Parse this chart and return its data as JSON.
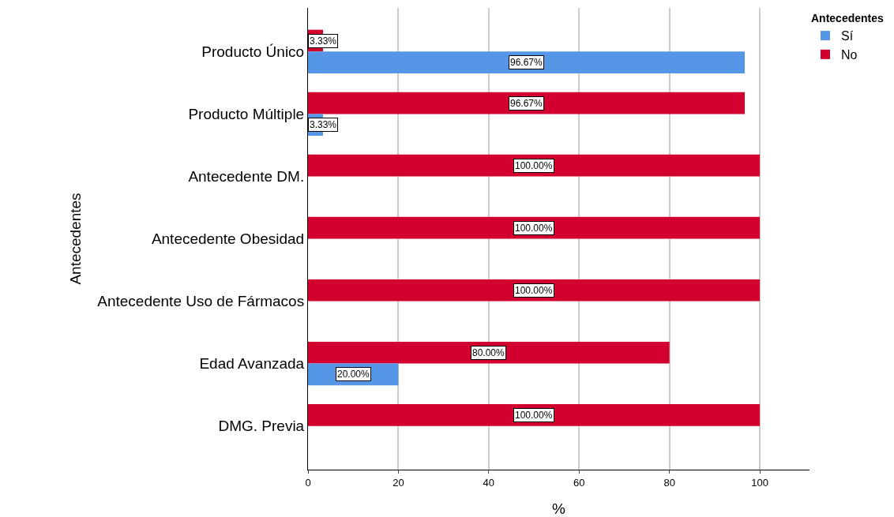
{
  "chart_data": {
    "type": "bar",
    "orientation": "horizontal",
    "xlabel": "%",
    "ylabel": "Antecedentes",
    "legend_title": "Antecedentes",
    "categories": [
      "Producto Único",
      "Producto Múltiple",
      "Antecedente DM.",
      "Antecedente Obesidad",
      "Antecedente Uso de Fármacos",
      "Edad Avanzada",
      "DMG. Previa"
    ],
    "series": [
      {
        "name": "Sí",
        "color": "#5596e6",
        "values": [
          96.67,
          3.33,
          0,
          0,
          0,
          20,
          0
        ],
        "value_labels": [
          "96.67%",
          "3.33%",
          null,
          null,
          null,
          "20.00%",
          null
        ]
      },
      {
        "name": "No",
        "color": "#d1002f",
        "values": [
          3.33,
          96.67,
          100,
          100,
          100,
          80,
          100
        ],
        "value_labels": [
          "3.33%",
          "96.67%",
          "100.00%",
          "100.00%",
          "100.00%",
          "80.00%",
          "100.00%"
        ]
      }
    ],
    "xlim": [
      0,
      111
    ],
    "xticks": [
      0,
      20,
      40,
      60,
      80,
      100
    ],
    "grid": "x",
    "legend": "top right"
  }
}
